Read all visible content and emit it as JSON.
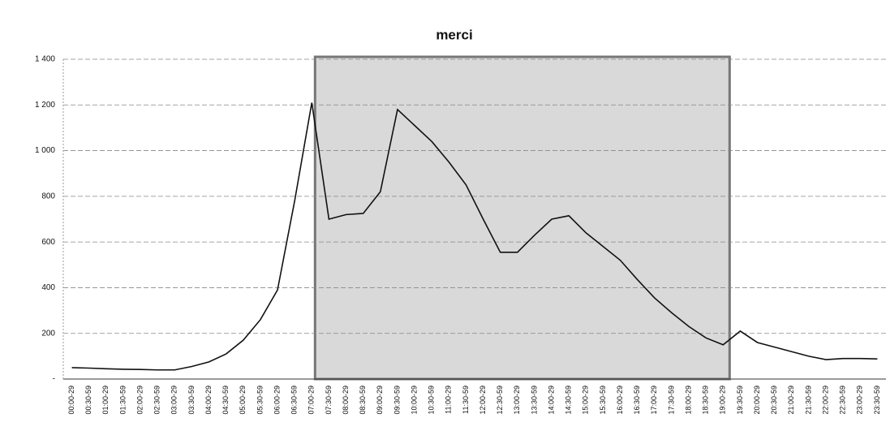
{
  "chart_data": {
    "type": "line",
    "title": "merci",
    "categories": [
      "00:00-29",
      "00:30-59",
      "01:00-29",
      "01:30-59",
      "02:00-29",
      "02:30-59",
      "03:00-29",
      "03:30-59",
      "04:00-29",
      "04:30-59",
      "05:00-29",
      "05:30-59",
      "06:00-29",
      "06:30-59",
      "07:00-29",
      "07:30-59",
      "08:00-29",
      "08:30-59",
      "09:00-29",
      "09:30-59",
      "10:00-29",
      "10:30-59",
      "11:00-29",
      "11:30-59",
      "12:00-29",
      "12:30-59",
      "13:00-29",
      "13:30-59",
      "14:00-29",
      "14:30-59",
      "15:00-29",
      "15:30-59",
      "16:00-29",
      "16:30-59",
      "17:00-29",
      "17:30-59",
      "18:00-29",
      "18:30-59",
      "19:00-29",
      "19:30-59",
      "20:00-29",
      "20:30-59",
      "21:00-29",
      "21:30-59",
      "22:00-29",
      "22:30-59",
      "23:00-29",
      "23:30-59"
    ],
    "values": [
      50,
      48,
      45,
      43,
      42,
      40,
      40,
      55,
      75,
      110,
      170,
      260,
      390,
      780,
      1210,
      700,
      720,
      725,
      820,
      1180,
      1110,
      1040,
      950,
      850,
      700,
      555,
      555,
      630,
      700,
      715,
      640,
      580,
      520,
      435,
      355,
      290,
      230,
      180,
      150,
      210,
      160,
      140,
      120,
      100,
      85,
      90,
      90,
      88
    ],
    "color": "#111111",
    "ylim": [
      0,
      1400
    ],
    "yticks": [
      {
        "value": 0,
        "label": "-"
      },
      200,
      400,
      600,
      800,
      {
        "value": 1000,
        "label": "1 000"
      },
      {
        "value": 1200,
        "label": "1 200"
      },
      {
        "value": 1400,
        "label": "1 400"
      }
    ],
    "grid": true
  }
}
